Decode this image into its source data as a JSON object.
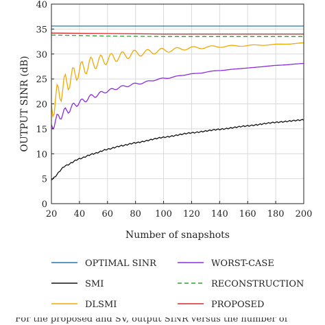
{
  "chart_data": {
    "type": "line",
    "title": "",
    "xlabel": "Number of snapshots",
    "ylabel": "OUTPUT SINR (dB)",
    "xlim": [
      20,
      200
    ],
    "ylim": [
      0,
      40
    ],
    "xticks": [
      20,
      40,
      60,
      80,
      100,
      120,
      140,
      160,
      180,
      200
    ],
    "yticks": [
      0,
      5,
      10,
      15,
      20,
      25,
      30,
      35,
      40
    ],
    "grid": true,
    "legend_placement": "below",
    "series": [
      {
        "name": "OPTIMAL SINR",
        "color": "#1f77b4",
        "style": "solid",
        "x": [
          20,
          200
        ],
        "y": [
          35.6,
          35.6
        ]
      },
      {
        "name": "SMI",
        "color": "#111111",
        "style": "solid",
        "x": [
          20,
          30,
          40,
          50,
          60,
          70,
          80,
          100,
          120,
          140,
          160,
          180,
          200
        ],
        "y": [
          4.8,
          7.6,
          9.0,
          10.0,
          10.9,
          11.6,
          12.2,
          13.3,
          14.2,
          14.9,
          15.6,
          16.3,
          16.8
        ]
      },
      {
        "name": "DLSMI",
        "color": "#f2a900",
        "style": "solid",
        "x": [
          20,
          25,
          30,
          35,
          40,
          50,
          60,
          70,
          80,
          100,
          120,
          140,
          160,
          180,
          200
        ],
        "y": [
          19.0,
          22.0,
          24.0,
          25.5,
          26.8,
          28.2,
          29.0,
          29.6,
          30.1,
          30.7,
          31.2,
          31.5,
          31.7,
          31.9,
          32.2
        ]
      },
      {
        "name": "WORST-CASE",
        "color": "#8a2be2",
        "style": "solid",
        "x": [
          20,
          25,
          30,
          40,
          50,
          60,
          70,
          80,
          100,
          120,
          140,
          160,
          180,
          200
        ],
        "y": [
          15.5,
          17.3,
          18.5,
          20.3,
          21.6,
          22.6,
          23.4,
          24.0,
          25.1,
          26.0,
          26.7,
          27.2,
          27.7,
          28.1
        ]
      },
      {
        "name": "RECONSTRUCTION",
        "color": "#2ca02c",
        "style": "dashed",
        "x": [
          20,
          60,
          100,
          140,
          200
        ],
        "y": [
          33.8,
          33.6,
          33.5,
          33.5,
          33.5
        ]
      },
      {
        "name": "PROPOSED",
        "color": "#d62728",
        "style": "solid",
        "x": [
          20,
          60,
          100,
          140,
          200
        ],
        "y": [
          34.2,
          34.1,
          34.0,
          34.0,
          34.0
        ]
      }
    ]
  },
  "caption": "For the proposed and SV, output SINR versus the number of"
}
